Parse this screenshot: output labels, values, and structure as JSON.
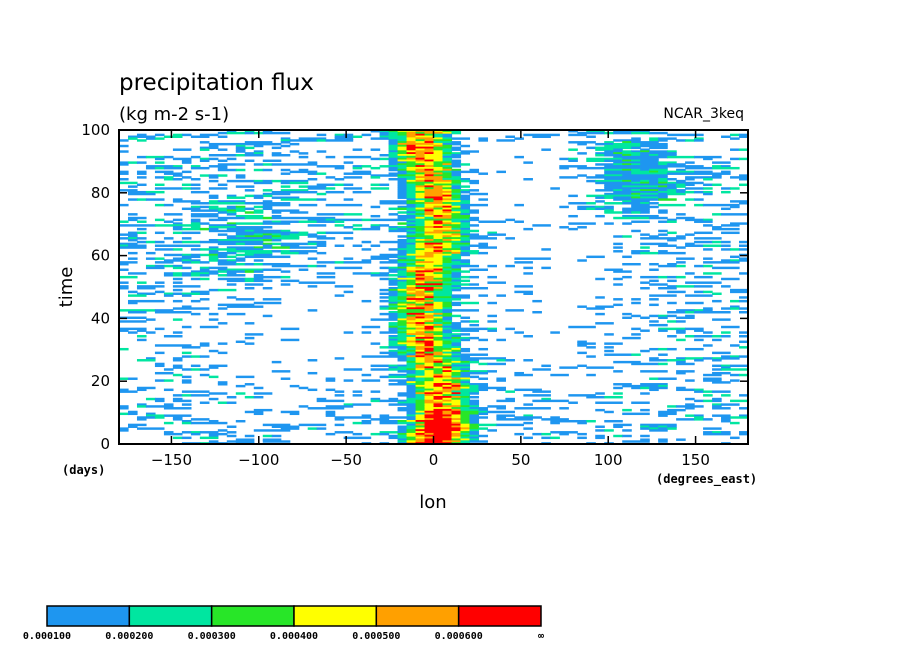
{
  "chart_data": {
    "type": "heatmap",
    "title": "precipitation flux",
    "subtitle": "(kg m-2 s-1)",
    "label_right": "NCAR_3keq",
    "ylabel": "time",
    "yunits": "(days)",
    "xlabel": "lon",
    "xunits": "(degrees_east)",
    "xlim": [
      -180,
      180
    ],
    "ylim": [
      0,
      100
    ],
    "xticks": [
      -150,
      -100,
      -50,
      0,
      50,
      100,
      150
    ],
    "yticks": [
      0,
      20,
      40,
      60,
      80,
      100
    ],
    "xtick_labels": [
      "−150",
      "−100",
      "−50",
      "0",
      "50",
      "100",
      "150"
    ],
    "ytick_labels": [
      "0",
      "20",
      "40",
      "60",
      "80",
      "100"
    ],
    "contour_levels": [
      0.0001,
      0.0002,
      0.0003,
      0.0004,
      0.0005,
      0.0006
    ],
    "colorbar": {
      "colors": [
        "#1e96f0",
        "#00e6a0",
        "#28e628",
        "#ffff00",
        "#ffa000",
        "#ff0000"
      ],
      "labels": [
        "0.000100",
        "0.000200",
        "0.000300",
        "0.000400",
        "0.000500",
        "0.000600",
        "∞"
      ]
    }
  }
}
